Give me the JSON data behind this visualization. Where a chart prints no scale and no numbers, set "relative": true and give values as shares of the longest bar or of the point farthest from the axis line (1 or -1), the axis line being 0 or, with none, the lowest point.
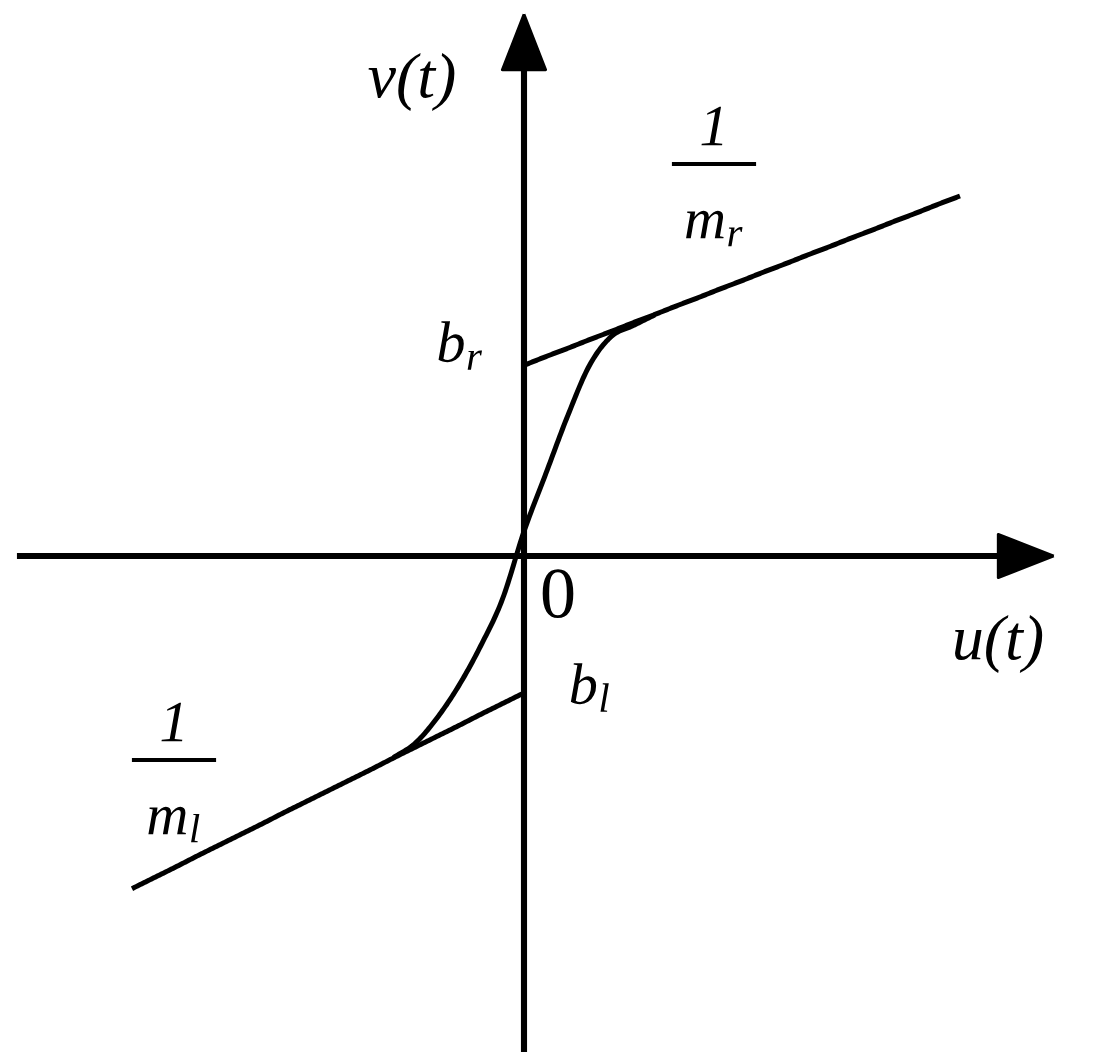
{
  "chart_data": {
    "type": "line",
    "relative": true,
    "xlabel": "u(t)",
    "ylabel": "v(t)",
    "categories": [
      null,
      null,
      null,
      null,
      null,
      null,
      null,
      null,
      null,
      null,
      null,
      null,
      null,
      null,
      null,
      null,
      null,
      null,
      null,
      null,
      null,
      null,
      null,
      null,
      null,
      null,
      null,
      null,
      null,
      null,
      null,
      null,
      null,
      null,
      null,
      null,
      null,
      null,
      null
    ],
    "series": [
      {
        "color": "#000000",
        "values": [
          null,
          null,
          null,
          null,
          null,
          null,
          null,
          null,
          null,
          null,
          null,
          null,
          null,
          null,
          null,
          null,
          null,
          null,
          0.53,
          0.554,
          0.577,
          0.601,
          0.624,
          0.648,
          0.671,
          0.695,
          0.718,
          0.742,
          0.765,
          0.789,
          0.812,
          0.836,
          0.859,
          0.883,
          0.906,
          0.93,
          0.953,
          0.977,
          1
        ]
      },
      {
        "color": "#000000",
        "values": [
          -0.924,
          -0.894,
          -0.864,
          -0.833,
          -0.803,
          -0.773,
          -0.743,
          -0.712,
          -0.682,
          -0.652,
          -0.622,
          -0.592,
          -0.561,
          -0.531,
          -0.501,
          -0.471,
          -0.44,
          -0.41,
          -0.38,
          null,
          null,
          null,
          null,
          null,
          null,
          null,
          null,
          null,
          null,
          null,
          null,
          null,
          null,
          null,
          null,
          null,
          null,
          null,
          null
        ]
      },
      {
        "color": "#000000",
        "values": [
          null,
          null,
          null,
          null,
          null,
          null,
          null,
          null,
          null,
          null,
          null,
          null,
          -0.56,
          -0.52,
          -0.45,
          -0.36,
          -0.25,
          -0.12,
          0.07,
          0.23,
          0.39,
          0.53,
          0.61,
          0.64,
          0.67,
          null,
          null,
          null,
          null,
          null,
          null,
          null,
          null,
          null,
          null,
          null,
          null,
          null,
          null
        ]
      }
    ],
    "annotations": [
      "0",
      "b$_{r}$",
      "b$_{l}$",
      "1\nm$_{r}$",
      "1\nm$_{l}$"
    ]
  }
}
